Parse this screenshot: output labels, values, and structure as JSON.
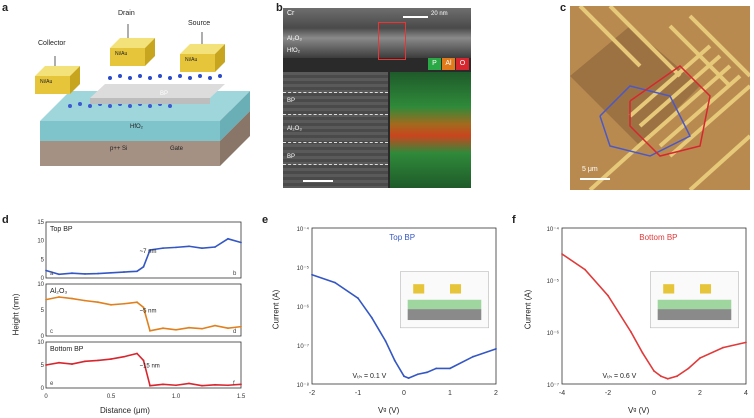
{
  "panels": {
    "a": {
      "letter": "a",
      "labels": {
        "collector": "Collector",
        "drain": "Drain",
        "source": "Source",
        "pad_metal": "Ni/Au",
        "bp": "BP",
        "hfo2": "HfO₂",
        "substrate": "p++ Si",
        "gate": "Gate"
      }
    },
    "b": {
      "letter": "b",
      "labels": {
        "cr": "Cr",
        "scale_top": "20 nm",
        "al2o3": "Al₂O₃",
        "hfo2": "HfO₂",
        "bp_top": "BP",
        "al2o3_mid": "Al₂O₃",
        "bp_bottom": "BP",
        "eds_p": "P",
        "eds_al": "Al",
        "eds_o": "O"
      }
    },
    "c": {
      "letter": "c",
      "scale": "5 μm"
    },
    "d": {
      "letter": "d",
      "ylabel": "Height (nm)",
      "xlabel": "Distance (μm)",
      "subplots": [
        {
          "title": "Top BP",
          "annotation": "~7 nm",
          "left_tag": "a",
          "right_tag": "b"
        },
        {
          "title": "Al₂O₃",
          "annotation": "~5 nm",
          "left_tag": "c",
          "right_tag": "d"
        },
        {
          "title": "Bottom BP",
          "annotation": "~15 nm",
          "left_tag": "e",
          "right_tag": "f"
        }
      ],
      "yticks": [
        "10",
        "5",
        "0"
      ],
      "yticks_top": [
        "15",
        "10",
        "5",
        "0"
      ],
      "xticks": [
        "0",
        "0.5",
        "1.0",
        "1.5"
      ]
    },
    "e": {
      "letter": "e",
      "series_label": "Top BP",
      "ylabel": "Current (A)",
      "xlabel": "Vᵍ (V)",
      "vth": "Vₜₕ = 0.1 V",
      "xticks": [
        "-2",
        "-1",
        "0",
        "1",
        "2"
      ],
      "yticks": [
        "10⁻⁴",
        "10⁻⁵",
        "10⁻⁶",
        "10⁻⁷",
        "10⁻⁸"
      ]
    },
    "f": {
      "letter": "f",
      "series_label": "Bottom BP",
      "ylabel": "Current (A)",
      "xlabel": "Vᵍ (V)",
      "vth": "Vₜₕ = 0.6 V",
      "xticks": [
        "-4",
        "-2",
        "0",
        "2",
        "4"
      ],
      "yticks": [
        "10⁻⁴",
        "10⁻⁵",
        "10⁻⁶",
        "10⁻⁷"
      ]
    }
  },
  "chart_data": [
    {
      "type": "line",
      "panel": "d-top",
      "series": [
        {
          "name": "Top BP",
          "x": [
            0,
            0.1,
            0.2,
            0.3,
            0.4,
            0.5,
            0.6,
            0.7,
            0.75,
            0.8,
            0.9,
            1.0,
            1.1,
            1.2,
            1.3,
            1.4,
            1.5
          ],
          "y": [
            2,
            1,
            1.3,
            1.1,
            1.2,
            1.4,
            1.6,
            1.8,
            3,
            7.5,
            8,
            8.2,
            8.5,
            8,
            8.3,
            10.5,
            9.5
          ]
        }
      ],
      "xlim": [
        0,
        1.5
      ],
      "ylim": [
        0,
        15
      ]
    },
    {
      "type": "line",
      "panel": "d-mid",
      "series": [
        {
          "name": "Al₂O₃",
          "x": [
            0,
            0.1,
            0.2,
            0.3,
            0.4,
            0.5,
            0.6,
            0.7,
            0.75,
            0.8,
            0.9,
            1.0,
            1.1,
            1.2,
            1.3,
            1.4,
            1.5
          ],
          "y": [
            7,
            7.5,
            7.2,
            6.8,
            6.5,
            6,
            6.2,
            6.5,
            5.5,
            1,
            1.5,
            1.2,
            1.6,
            1.4,
            2,
            1.5,
            1.8
          ]
        }
      ],
      "xlim": [
        0,
        1.5
      ],
      "ylim": [
        0,
        10
      ]
    },
    {
      "type": "line",
      "panel": "d-bottom",
      "series": [
        {
          "name": "Bottom BP",
          "x": [
            0,
            0.1,
            0.2,
            0.3,
            0.4,
            0.5,
            0.6,
            0.7,
            0.75,
            0.8,
            0.9,
            1.0,
            1.1,
            1.2,
            1.3,
            1.4,
            1.5
          ],
          "y": [
            5,
            5.5,
            5.2,
            5.8,
            6,
            6.3,
            6.8,
            7.5,
            6,
            0.5,
            0.8,
            0.6,
            1,
            0.5,
            0.7,
            0.6,
            0.8
          ]
        }
      ],
      "xlim": [
        0,
        1.5
      ],
      "ylim": [
        0,
        10
      ]
    },
    {
      "type": "line",
      "panel": "e",
      "series": [
        {
          "name": "Top BP",
          "x": [
            -2,
            -1.5,
            -1,
            -0.7,
            -0.4,
            -0.2,
            0,
            0.1,
            0.3,
            0.5,
            0.7,
            1,
            1.5,
            2
          ],
          "y": [
            -5.2,
            -5.4,
            -5.8,
            -6.3,
            -6.9,
            -7.4,
            -7.8,
            -7.85,
            -7.75,
            -7.7,
            -7.6,
            -7.6,
            -7.3,
            -7.1
          ]
        }
      ],
      "xlim": [
        -2,
        2
      ],
      "ylim": [
        -8,
        -4
      ],
      "ylog": true
    },
    {
      "type": "line",
      "panel": "f",
      "series": [
        {
          "name": "Bottom BP",
          "x": [
            -4,
            -3,
            -2,
            -1,
            -0.5,
            0,
            0.3,
            0.6,
            1,
            1.5,
            2,
            3,
            4
          ],
          "y": [
            -4.5,
            -4.8,
            -5.3,
            -6,
            -6.4,
            -6.75,
            -6.85,
            -6.9,
            -6.85,
            -6.7,
            -6.5,
            -6.3,
            -6.2
          ]
        }
      ],
      "xlim": [
        -4,
        4
      ],
      "ylim": [
        -7,
        -4
      ],
      "ylog": true
    }
  ]
}
